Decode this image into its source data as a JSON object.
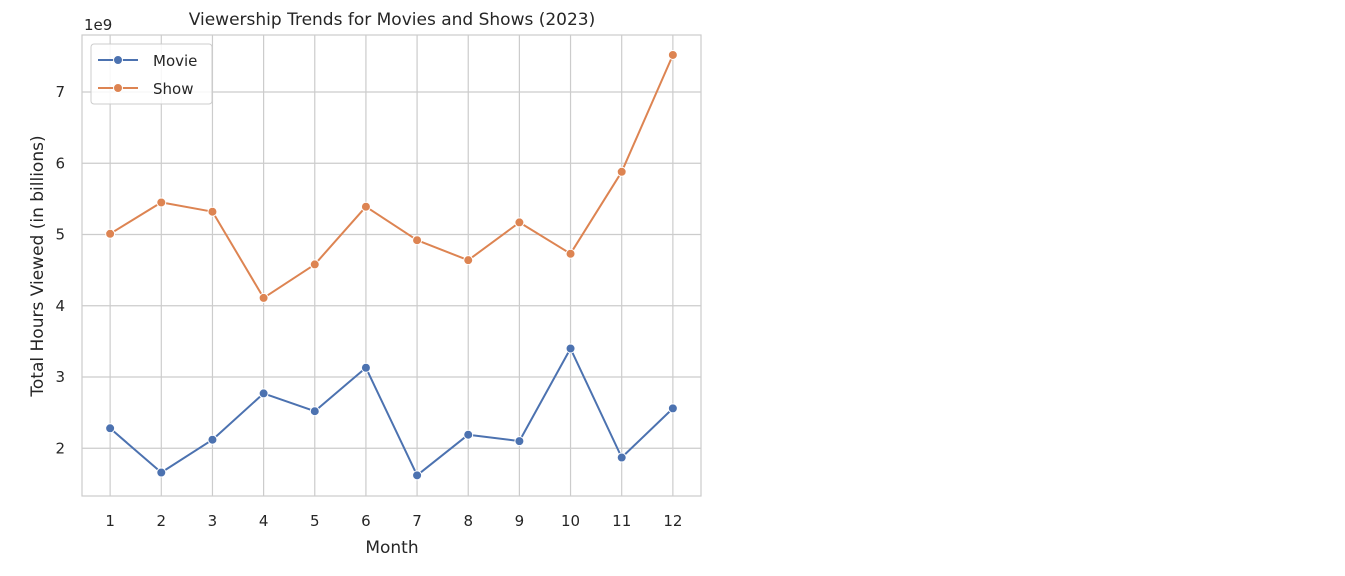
{
  "chart_data": {
    "type": "line",
    "title": "Viewership Trends for Movies and Shows (2023)",
    "xlabel": "Month",
    "ylabel": "Total Hours Viewed (in billions)",
    "y_offset_label": "1e9",
    "x": [
      1,
      2,
      3,
      4,
      5,
      6,
      7,
      8,
      9,
      10,
      11,
      12
    ],
    "x_ticks": [
      "1",
      "2",
      "3",
      "4",
      "5",
      "6",
      "7",
      "8",
      "9",
      "10",
      "11",
      "12"
    ],
    "y_ticks": [
      2,
      3,
      4,
      5,
      6,
      7
    ],
    "y_tick_labels": [
      "2",
      "3",
      "4",
      "5",
      "6",
      "7"
    ],
    "xlim": [
      0.45,
      12.55
    ],
    "ylim": [
      1.33,
      7.8
    ],
    "grid": true,
    "legend_position": "top-left",
    "series": [
      {
        "name": "Movie",
        "color": "#4c72b0",
        "values": [
          2.28,
          1.66,
          2.12,
          2.77,
          2.52,
          3.13,
          1.62,
          2.19,
          2.1,
          3.4,
          1.87,
          2.56
        ]
      },
      {
        "name": "Show",
        "color": "#dd8452",
        "values": [
          5.01,
          5.45,
          5.32,
          4.11,
          4.58,
          5.39,
          4.92,
          4.64,
          5.17,
          4.73,
          5.88,
          7.52
        ]
      }
    ]
  }
}
